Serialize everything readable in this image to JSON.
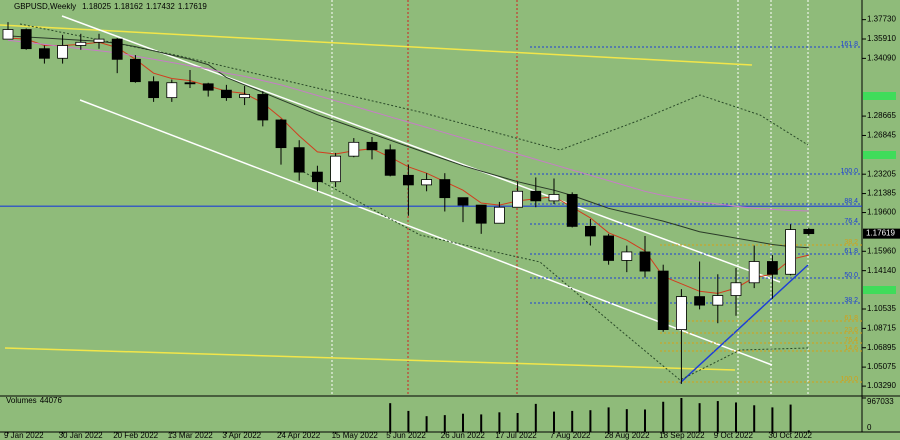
{
  "chart_data": {
    "type": "candlestick",
    "title": "GBPUSD,Weekly",
    "categories": [
      "9 Jan 2022",
      null,
      null,
      "30 Jan 2022",
      null,
      null,
      "20 Feb 2022",
      null,
      null,
      "13 Mar 2022",
      null,
      null,
      "3 Apr 2022",
      null,
      null,
      "24 Apr 2022",
      null,
      null,
      "15 May 2022",
      null,
      null,
      "5 Jun 2022",
      null,
      null,
      "26 Jun 2022",
      null,
      null,
      "17 Jul 2022",
      null,
      null,
      "7 Aug 2022",
      null,
      null,
      "28 Aug 2022",
      null,
      null,
      "18 Sep 2022",
      null,
      null,
      "9 Oct 2022",
      null,
      null,
      "30 Oct 2022",
      null,
      null
    ],
    "open": [
      1.359,
      1.368,
      1.35,
      1.341,
      1.353,
      1.356,
      1.359,
      1.34,
      1.319,
      1.304,
      1.318,
      1.317,
      1.311,
      1.304,
      1.307,
      1.283,
      1.257,
      1.234,
      1.225,
      1.249,
      1.262,
      1.255,
      1.231,
      1.222,
      1.227,
      1.21,
      1.203,
      1.186,
      1.201,
      1.216,
      1.207,
      1.213,
      1.183,
      1.174,
      1.151,
      1.159,
      1.141,
      1.086,
      1.117,
      1.109,
      1.118,
      1.13,
      1.15,
      1.138,
      1.18025
    ],
    "high": [
      1.375,
      1.369,
      1.353,
      1.363,
      1.364,
      1.364,
      1.36,
      1.344,
      1.324,
      1.321,
      1.33,
      1.318,
      1.316,
      1.315,
      1.31,
      1.284,
      1.264,
      1.24,
      1.252,
      1.266,
      1.267,
      1.26,
      1.241,
      1.233,
      1.233,
      1.21,
      1.203,
      1.206,
      1.225,
      1.229,
      1.228,
      1.215,
      1.19,
      1.176,
      1.165,
      1.174,
      1.147,
      1.124,
      1.15,
      1.138,
      1.144,
      1.165,
      1.156,
      1.185,
      1.18162
    ],
    "low": [
      1.359,
      1.349,
      1.336,
      1.336,
      1.349,
      1.35,
      1.327,
      1.318,
      1.3,
      1.3,
      1.313,
      1.305,
      1.301,
      1.297,
      1.277,
      1.241,
      1.226,
      1.216,
      1.22,
      1.248,
      1.246,
      1.23,
      1.193,
      1.216,
      1.197,
      1.187,
      1.176,
      1.186,
      1.201,
      1.201,
      1.204,
      1.182,
      1.165,
      1.147,
      1.14,
      1.135,
      1.084,
      1.035,
      1.105,
      1.092,
      1.099,
      1.125,
      1.115,
      1.137,
      1.17432
    ],
    "close": [
      1.368,
      1.35,
      1.341,
      1.353,
      1.356,
      1.359,
      1.34,
      1.319,
      1.304,
      1.318,
      1.317,
      1.311,
      1.304,
      1.307,
      1.283,
      1.257,
      1.234,
      1.225,
      1.249,
      1.262,
      1.255,
      1.231,
      1.222,
      1.227,
      1.21,
      1.203,
      1.186,
      1.201,
      1.216,
      1.207,
      1.213,
      1.183,
      1.174,
      1.151,
      1.159,
      1.141,
      1.086,
      1.117,
      1.109,
      1.118,
      1.13,
      1.15,
      1.138,
      1.18,
      1.17619
    ],
    "up_color": "#ffffff",
    "down_color": "#000000",
    "ylim": [
      1.0236,
      1.3826
    ],
    "yticks": [
      {
        "value": 1.3773,
        "label": "1.37730"
      },
      {
        "value": 1.3591,
        "label": "1.35910"
      },
      {
        "value": 1.3409,
        "label": "1.34090"
      },
      {
        "value": 1.28665,
        "label": "1.28665"
      },
      {
        "value": 1.26845,
        "label": "1.26845"
      },
      {
        "value": 1.23205,
        "label": "1.23205"
      },
      {
        "value": 1.21385,
        "label": "1.21385"
      },
      {
        "value": 1.196,
        "label": "1.19600"
      },
      {
        "value": 1.1596,
        "label": "1.15960"
      },
      {
        "value": 1.1414,
        "label": "1.14140"
      },
      {
        "value": 1.10535,
        "label": "1.10535"
      },
      {
        "value": 1.08715,
        "label": "1.08715"
      },
      {
        "value": 1.06895,
        "label": "1.06895"
      },
      {
        "value": 1.05075,
        "label": "1.05075"
      },
      {
        "value": 1.0329,
        "label": "1.03290"
      }
    ],
    "series": [
      {
        "color": "#d23c1e",
        "values": [
          1.36,
          1.359,
          1.353,
          1.353,
          1.354,
          1.356,
          1.351,
          1.34,
          1.327,
          1.322,
          1.32,
          1.315,
          1.31,
          1.308,
          1.299,
          1.285,
          1.268,
          1.253,
          1.251,
          1.254,
          1.256,
          1.248,
          1.239,
          1.233,
          1.225,
          1.217,
          1.205,
          1.203,
          1.207,
          1.209,
          1.211,
          1.201,
          1.191,
          1.177,
          1.17,
          1.16,
          1.136,
          1.129,
          1.122,
          1.12,
          1.125,
          1.135,
          1.138,
          1.152,
          1.156
        ]
      },
      {
        "color": "#2a3a28",
        "values": [
          1.362,
          1.361,
          1.36,
          1.359,
          1.358,
          1.357,
          1.355,
          1.352,
          1.348,
          1.344,
          1.34,
          1.335,
          1.323,
          1.316,
          1.309,
          1.302,
          1.295,
          1.288,
          1.282,
          1.276,
          1.27,
          1.264,
          1.258,
          1.252,
          1.246,
          1.24,
          1.235,
          1.23,
          1.225,
          1.221,
          1.217,
          1.212,
          1.206,
          1.2,
          1.196,
          1.192,
          1.188,
          1.183,
          1.178,
          1.175,
          1.172,
          1.169,
          1.166,
          1.164,
          1.163
        ]
      },
      {
        "color": "#c77dc7",
        "values": [
          1.358,
          1.356,
          1.354,
          1.352,
          1.35,
          1.348,
          1.346,
          1.343,
          1.34,
          1.337,
          1.334,
          1.331,
          1.327,
          1.324,
          1.32,
          1.316,
          1.311,
          1.306,
          1.301,
          1.296,
          1.291,
          1.286,
          1.281,
          1.276,
          1.271,
          1.266,
          1.261,
          1.256,
          1.251,
          1.246,
          1.241,
          1.236,
          1.231,
          1.226,
          1.221,
          1.216,
          1.212,
          1.209,
          1.206,
          1.204,
          1.202,
          1.2,
          1.199,
          1.198,
          1.1975
        ]
      }
    ],
    "hlines": [
      {
        "value": 1.202,
        "color": "#1d3fd6"
      }
    ],
    "levels": [
      {
        "label": "161.8",
        "value": 1.3516,
        "color": "#1d3fd6"
      },
      {
        "label": "100.0",
        "value": 1.2322,
        "color": "#1d3fd6"
      },
      {
        "label": "88.4",
        "value": 1.204,
        "color": "#1d3fd6"
      },
      {
        "label": "76.4",
        "value": 1.1853,
        "color": "#1d3fd6"
      },
      {
        "label": "61.8",
        "value": 1.1571,
        "color": "#1d3fd6"
      },
      {
        "label": "50.0",
        "value": 1.1345,
        "color": "#1d3fd6"
      },
      {
        "label": "38.2",
        "value": 1.111,
        "color": "#1d3fd6"
      },
      {
        "label": "38.2",
        "value": 1.1655,
        "color": "#d4a017"
      },
      {
        "label": "61.8",
        "value": 1.0941,
        "color": "#d4a017"
      },
      {
        "label": "23.6",
        "value": 1.0828,
        "color": "#d4a017"
      },
      {
        "label": "76.4",
        "value": 1.0734,
        "color": "#d4a017"
      },
      {
        "label": "14.6",
        "value": 1.0659,
        "color": "#d4a017"
      },
      {
        "label": "100.0",
        "value": 1.0367,
        "color": "#d4a017"
      }
    ],
    "volume": {
      "title": "Volumes",
      "color": "#000000",
      "values": [
        8000,
        9000,
        8500,
        9000,
        7000,
        8000,
        9500,
        11000,
        10500,
        8000,
        7500,
        7000,
        8000,
        7000,
        9000,
        11000,
        10000,
        9000,
        9500,
        8000,
        7000,
        820000,
        600000,
        450000,
        480000,
        520000,
        500000,
        560000,
        540000,
        800000,
        580000,
        600000,
        620000,
        700000,
        650000,
        640000,
        860000,
        967033,
        820000,
        880000,
        840000,
        760000,
        700000,
        780000,
        44076
      ],
      "ylim": [
        0,
        967033
      ],
      "yticks": [
        967033,
        0
      ]
    }
  }
}
